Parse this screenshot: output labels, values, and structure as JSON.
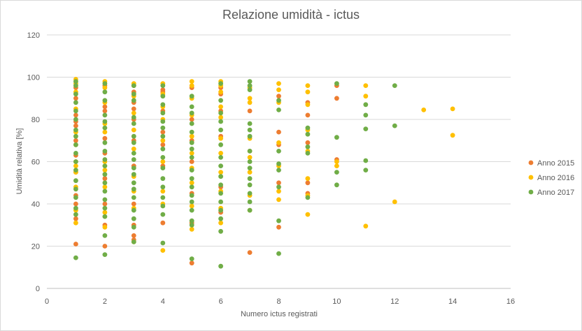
{
  "chart_data": {
    "type": "scatter",
    "title": "Relazione umidità - ictus",
    "xlabel": "Numero  ictus registrati",
    "ylabel": "Umidità relativa [%]",
    "xlim": [
      0,
      16
    ],
    "ylim": [
      0,
      120
    ],
    "x_ticks": [
      0,
      2,
      4,
      6,
      8,
      10,
      12,
      14,
      16
    ],
    "y_ticks": [
      0,
      20,
      40,
      60,
      80,
      100,
      120
    ],
    "grid": "horizontal",
    "legend_position": "right",
    "series": [
      {
        "name": "Anno 2015",
        "color": "#ED7D31",
        "points": [
          [
            1,
            21
          ],
          [
            1,
            95
          ],
          [
            1,
            90
          ],
          [
            1,
            82
          ],
          [
            1,
            79
          ],
          [
            1,
            77
          ],
          [
            1,
            70
          ],
          [
            1,
            63
          ],
          [
            1,
            55
          ],
          [
            1,
            44
          ],
          [
            1,
            40
          ],
          [
            1,
            33
          ],
          [
            2,
            96
          ],
          [
            2,
            86
          ],
          [
            2,
            84
          ],
          [
            2,
            71
          ],
          [
            2,
            64
          ],
          [
            2,
            52
          ],
          [
            2,
            40
          ],
          [
            2,
            30
          ],
          [
            2,
            20
          ],
          [
            3,
            96
          ],
          [
            3,
            93
          ],
          [
            3,
            88
          ],
          [
            3,
            85
          ],
          [
            3,
            80
          ],
          [
            3,
            70
          ],
          [
            3,
            58
          ],
          [
            3,
            40
          ],
          [
            3,
            30
          ],
          [
            3,
            25
          ],
          [
            3,
            23
          ],
          [
            4,
            94
          ],
          [
            4,
            93
          ],
          [
            4,
            84
          ],
          [
            4,
            74
          ],
          [
            4,
            68
          ],
          [
            4,
            58
          ],
          [
            4,
            31
          ],
          [
            5,
            95
          ],
          [
            5,
            80
          ],
          [
            5,
            70
          ],
          [
            5,
            60
          ],
          [
            5,
            45
          ],
          [
            5,
            31
          ],
          [
            5,
            12
          ],
          [
            6,
            95
          ],
          [
            6,
            92
          ],
          [
            6,
            84
          ],
          [
            6,
            72
          ],
          [
            6,
            48
          ],
          [
            6,
            36
          ],
          [
            7,
            84
          ],
          [
            7,
            65
          ],
          [
            7,
            17
          ],
          [
            8,
            91
          ],
          [
            8,
            74
          ],
          [
            8,
            68
          ],
          [
            8,
            50
          ],
          [
            8,
            29
          ],
          [
            9,
            88
          ],
          [
            9,
            82
          ],
          [
            9,
            69
          ],
          [
            9,
            50
          ],
          [
            9,
            45
          ],
          [
            10,
            96
          ],
          [
            10,
            90
          ],
          [
            10,
            61
          ]
        ]
      },
      {
        "name": "Anno 2016",
        "color": "#FFC000",
        "points": [
          [
            1,
            99
          ],
          [
            1,
            97
          ],
          [
            1,
            93
          ],
          [
            1,
            85
          ],
          [
            1,
            74
          ],
          [
            1,
            68
          ],
          [
            1,
            60
          ],
          [
            1,
            58
          ],
          [
            1,
            55
          ],
          [
            1,
            48
          ],
          [
            1,
            37
          ],
          [
            1,
            31
          ],
          [
            2,
            98
          ],
          [
            2,
            95
          ],
          [
            2,
            88
          ],
          [
            2,
            78
          ],
          [
            2,
            74
          ],
          [
            2,
            60
          ],
          [
            2,
            56
          ],
          [
            2,
            48
          ],
          [
            2,
            36
          ],
          [
            2,
            29
          ],
          [
            3,
            97
          ],
          [
            3,
            91
          ],
          [
            3,
            83
          ],
          [
            3,
            75
          ],
          [
            3,
            66
          ],
          [
            3,
            53
          ],
          [
            3,
            46
          ],
          [
            3,
            38
          ],
          [
            3,
            22
          ],
          [
            4,
            97
          ],
          [
            4,
            92
          ],
          [
            4,
            86
          ],
          [
            4,
            80
          ],
          [
            4,
            70
          ],
          [
            4,
            60
          ],
          [
            4,
            46
          ],
          [
            4,
            40
          ],
          [
            4,
            18
          ],
          [
            5,
            98
          ],
          [
            5,
            96
          ],
          [
            5,
            90
          ],
          [
            5,
            82
          ],
          [
            5,
            72
          ],
          [
            5,
            64
          ],
          [
            5,
            57
          ],
          [
            5,
            50
          ],
          [
            5,
            39
          ],
          [
            5,
            28
          ],
          [
            6,
            98
          ],
          [
            6,
            96
          ],
          [
            6,
            93
          ],
          [
            6,
            86
          ],
          [
            6,
            81
          ],
          [
            6,
            71
          ],
          [
            6,
            64
          ],
          [
            6,
            55
          ],
          [
            6,
            46
          ],
          [
            6,
            38
          ],
          [
            6,
            31
          ],
          [
            7,
            95
          ],
          [
            7,
            90
          ],
          [
            7,
            88
          ],
          [
            7,
            71
          ],
          [
            7,
            62
          ],
          [
            7,
            55
          ],
          [
            7,
            44
          ],
          [
            7,
            37
          ],
          [
            8,
            97
          ],
          [
            8,
            94
          ],
          [
            8,
            88
          ],
          [
            8,
            69
          ],
          [
            8,
            58
          ],
          [
            8,
            46
          ],
          [
            8,
            42
          ],
          [
            9,
            96
          ],
          [
            9,
            93
          ],
          [
            9,
            87
          ],
          [
            9,
            75
          ],
          [
            9,
            65
          ],
          [
            9,
            52
          ],
          [
            9,
            44
          ],
          [
            9,
            35
          ],
          [
            10,
            60
          ],
          [
            10,
            58
          ],
          [
            11,
            96
          ],
          [
            11,
            91
          ],
          [
            11,
            29.5
          ],
          [
            12,
            41
          ],
          [
            13,
            84.5
          ],
          [
            14,
            85
          ],
          [
            14,
            72.5
          ]
        ]
      },
      {
        "name": "Anno 2017",
        "color": "#70AD47",
        "points": [
          [
            1,
            98
          ],
          [
            1,
            96
          ],
          [
            1,
            92
          ],
          [
            1,
            88
          ],
          [
            1,
            84
          ],
          [
            1,
            80
          ],
          [
            1,
            75
          ],
          [
            1,
            72
          ],
          [
            1,
            68
          ],
          [
            1,
            64
          ],
          [
            1,
            60
          ],
          [
            1,
            56
          ],
          [
            1,
            51
          ],
          [
            1,
            47
          ],
          [
            1,
            43
          ],
          [
            1,
            38
          ],
          [
            1,
            35
          ],
          [
            1,
            14.5
          ],
          [
            2,
            97
          ],
          [
            2,
            93
          ],
          [
            2,
            89
          ],
          [
            2,
            82
          ],
          [
            2,
            79
          ],
          [
            2,
            76
          ],
          [
            2,
            69
          ],
          [
            2,
            65
          ],
          [
            2,
            61
          ],
          [
            2,
            58
          ],
          [
            2,
            54
          ],
          [
            2,
            50
          ],
          [
            2,
            46
          ],
          [
            2,
            42
          ],
          [
            2,
            38
          ],
          [
            2,
            34
          ],
          [
            2,
            25
          ],
          [
            2,
            16
          ],
          [
            3,
            96
          ],
          [
            3,
            92
          ],
          [
            3,
            89
          ],
          [
            3,
            81
          ],
          [
            3,
            78
          ],
          [
            3,
            72
          ],
          [
            3,
            69
          ],
          [
            3,
            64
          ],
          [
            3,
            61
          ],
          [
            3,
            57
          ],
          [
            3,
            54
          ],
          [
            3,
            50
          ],
          [
            3,
            47
          ],
          [
            3,
            43
          ],
          [
            3,
            37
          ],
          [
            3,
            33
          ],
          [
            3,
            29
          ],
          [
            3,
            22
          ],
          [
            4,
            96
          ],
          [
            4,
            91
          ],
          [
            4,
            87
          ],
          [
            4,
            83
          ],
          [
            4,
            79
          ],
          [
            4,
            76
          ],
          [
            4,
            72
          ],
          [
            4,
            66
          ],
          [
            4,
            62
          ],
          [
            4,
            57
          ],
          [
            4,
            52
          ],
          [
            4,
            48
          ],
          [
            4,
            43
          ],
          [
            4,
            39
          ],
          [
            4,
            35
          ],
          [
            4,
            21.5
          ],
          [
            5,
            91
          ],
          [
            5,
            86
          ],
          [
            5,
            83
          ],
          [
            5,
            78
          ],
          [
            5,
            74
          ],
          [
            5,
            69
          ],
          [
            5,
            66
          ],
          [
            5,
            62
          ],
          [
            5,
            56
          ],
          [
            5,
            52
          ],
          [
            5,
            48
          ],
          [
            5,
            44
          ],
          [
            5,
            41
          ],
          [
            5,
            37
          ],
          [
            5,
            32
          ],
          [
            5,
            30
          ],
          [
            5,
            14
          ],
          [
            6,
            97
          ],
          [
            6,
            89
          ],
          [
            6,
            83
          ],
          [
            6,
            79
          ],
          [
            6,
            75
          ],
          [
            6,
            68
          ],
          [
            6,
            62
          ],
          [
            6,
            58
          ],
          [
            6,
            53
          ],
          [
            6,
            49
          ],
          [
            6,
            45
          ],
          [
            6,
            41
          ],
          [
            6,
            37
          ],
          [
            6,
            33
          ],
          [
            6,
            27
          ],
          [
            6,
            10.5
          ],
          [
            7,
            98
          ],
          [
            7,
            96
          ],
          [
            7,
            94
          ],
          [
            7,
            78
          ],
          [
            7,
            75
          ],
          [
            7,
            72
          ],
          [
            7,
            65
          ],
          [
            7,
            60
          ],
          [
            7,
            57
          ],
          [
            7,
            52
          ],
          [
            7,
            49
          ],
          [
            7,
            45
          ],
          [
            7,
            41
          ],
          [
            7,
            37
          ],
          [
            8,
            89
          ],
          [
            8,
            84.5
          ],
          [
            8,
            65
          ],
          [
            8,
            59
          ],
          [
            8,
            56
          ],
          [
            8,
            48
          ],
          [
            8,
            32
          ],
          [
            8,
            16.5
          ],
          [
            9,
            76
          ],
          [
            9,
            73
          ],
          [
            9,
            67
          ],
          [
            9,
            64
          ],
          [
            9,
            43
          ],
          [
            10,
            97
          ],
          [
            10,
            71.5
          ],
          [
            10,
            55
          ],
          [
            10,
            49
          ],
          [
            11,
            87
          ],
          [
            11,
            82
          ],
          [
            11,
            75.5
          ],
          [
            11,
            60.5
          ],
          [
            11,
            56
          ],
          [
            12,
            96
          ],
          [
            12,
            77
          ]
        ]
      }
    ]
  }
}
